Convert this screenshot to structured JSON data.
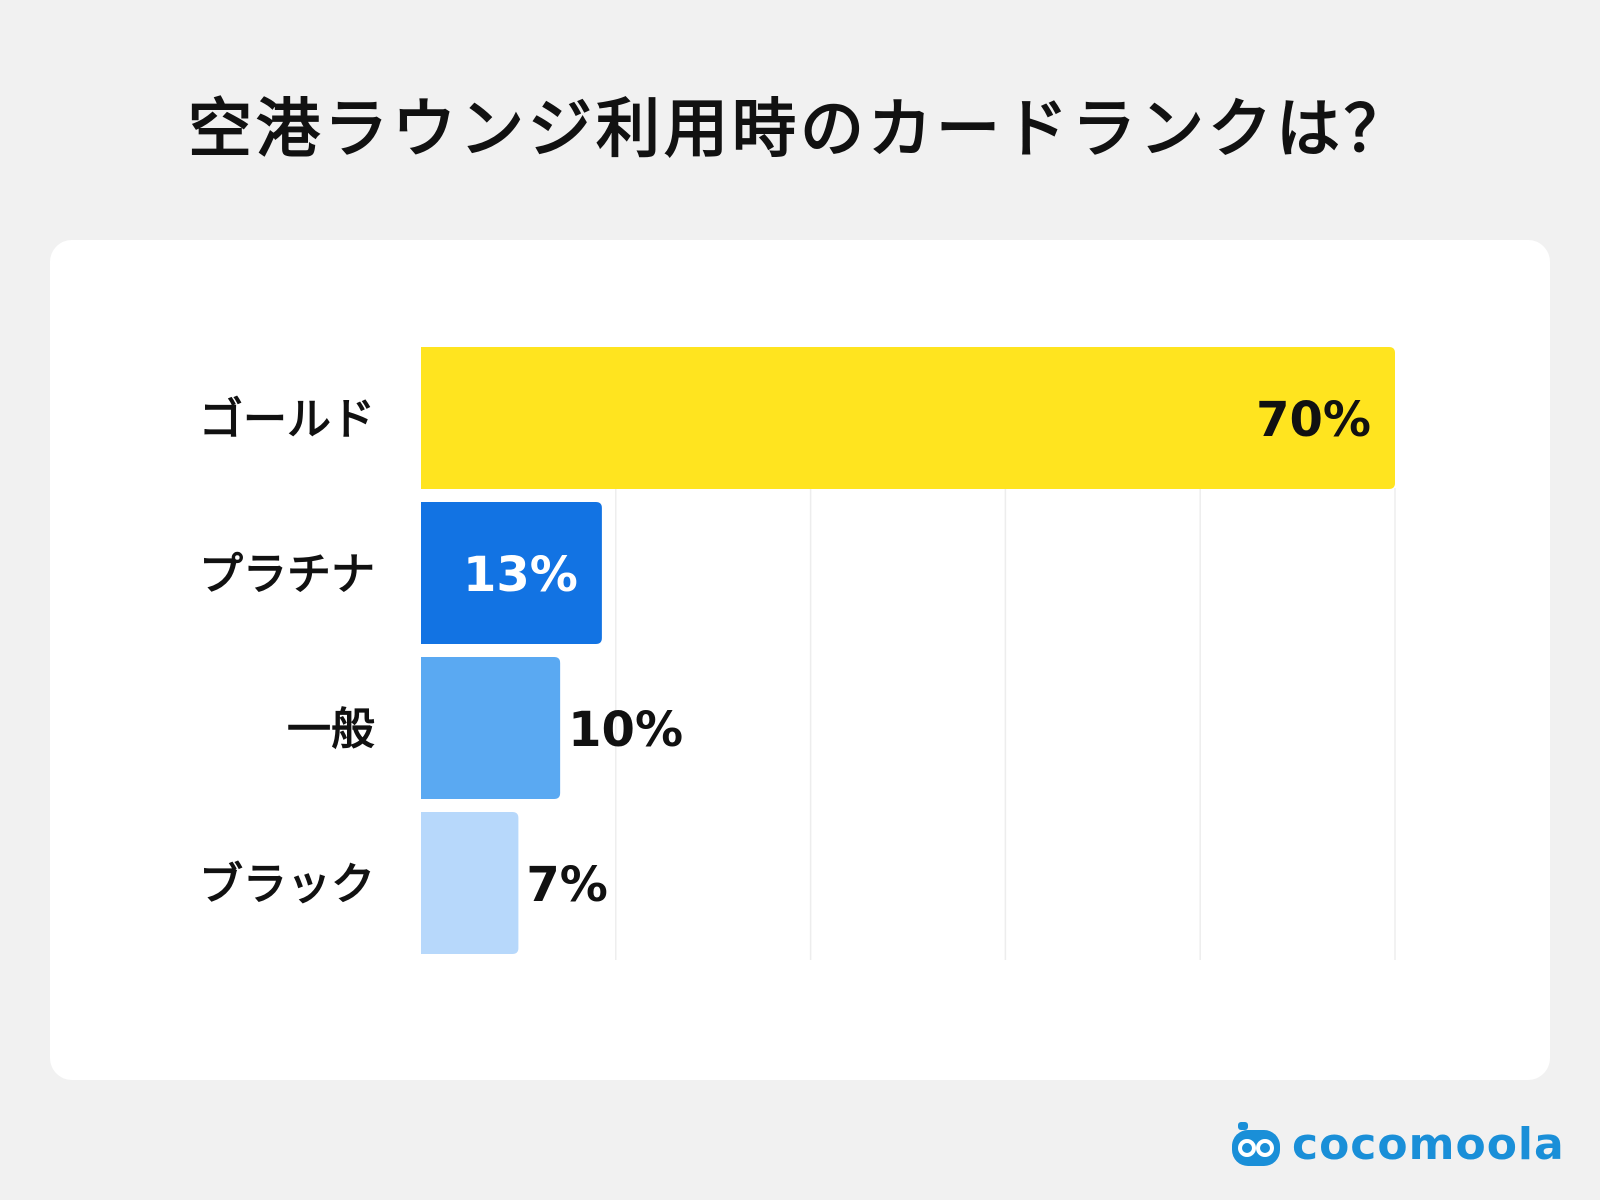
{
  "title": "空港ラウンジ利用時のカードランクは？",
  "brand": {
    "name": "cocomoola",
    "color": "#1a8fd8",
    "icon": "robot-face-icon"
  },
  "chart_data": {
    "type": "bar",
    "orientation": "horizontal",
    "title": "空港ラウンジ利用時のカードランクは？",
    "categories": [
      "ゴールド",
      "プラチナ",
      "一般",
      "ブラック"
    ],
    "values": [
      70,
      13,
      10,
      7
    ],
    "value_labels": [
      "70%",
      "13%",
      "10%",
      "7%"
    ],
    "colors": [
      "#ffe41f",
      "#1273e3",
      "#5aa9f2",
      "#b7d8fb"
    ],
    "label_colors": [
      "#111111",
      "#ffffff",
      "#111111",
      "#111111"
    ],
    "label_position": [
      "inside",
      "inside",
      "outside",
      "outside"
    ],
    "xlim": [
      0,
      70
    ],
    "grid": true,
    "legend": "none"
  }
}
